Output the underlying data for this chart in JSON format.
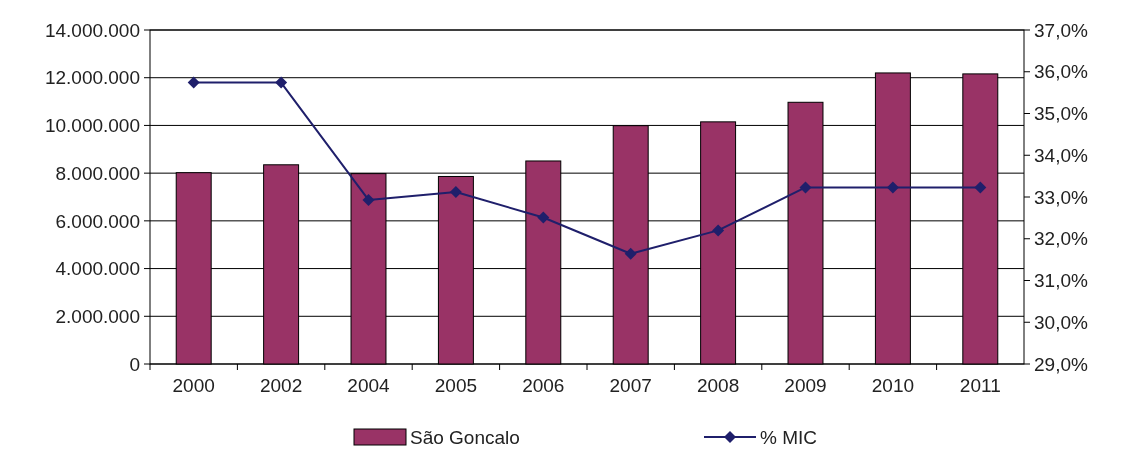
{
  "chart_data": {
    "type": "bar",
    "categories": [
      "2000",
      "2002",
      "2004",
      "2005",
      "2006",
      "2007",
      "2008",
      "2009",
      "2010",
      "2011"
    ],
    "series": [
      {
        "name": "São Goncalo",
        "color": "#993366",
        "values": [
          8020000,
          8350000,
          7980000,
          7860000,
          8510000,
          9990000,
          10150000,
          10970000,
          12200000,
          12160000
        ]
      },
      {
        "name": "% MIC",
        "type": "line",
        "axis": "y2",
        "color": "#1f1f6b",
        "marker": "diamond",
        "values": [
          35.74,
          35.74,
          32.93,
          33.12,
          32.51,
          31.64,
          32.2,
          33.23,
          33.23,
          33.23
        ]
      }
    ],
    "ylim": [
      0,
      14000000
    ],
    "yticks": [
      {
        "value": 0,
        "label": "0"
      },
      {
        "value": 2000000,
        "label": "2.000.000"
      },
      {
        "value": 4000000,
        "label": "4.000.000"
      },
      {
        "value": 6000000,
        "label": "6.000.000"
      },
      {
        "value": 8000000,
        "label": "8.000.000"
      },
      {
        "value": 10000000,
        "label": "10.000.000"
      },
      {
        "value": 12000000,
        "label": "12.000.000"
      },
      {
        "value": 14000000,
        "label": "14.000.000"
      }
    ],
    "y2lim": [
      29,
      37
    ],
    "y2ticks": [
      {
        "value": 29,
        "label": "29,0%"
      },
      {
        "value": 30,
        "label": "30,0%"
      },
      {
        "value": 31,
        "label": "31,0%"
      },
      {
        "value": 32,
        "label": "32,0%"
      },
      {
        "value": 33,
        "label": "33,0%"
      },
      {
        "value": 34,
        "label": "34,0%"
      },
      {
        "value": 35,
        "label": "35,0%"
      },
      {
        "value": 36,
        "label": "36,0%"
      },
      {
        "value": 37,
        "label": "37,0%"
      }
    ],
    "grid": "y",
    "legend": "bottom"
  }
}
